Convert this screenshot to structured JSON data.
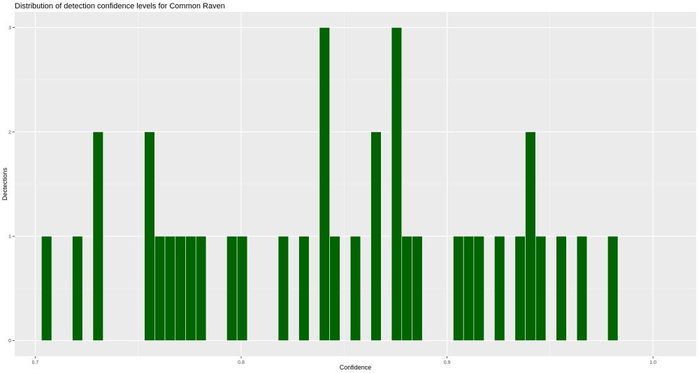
{
  "chart_data": {
    "type": "bar",
    "title": "Distribution of detection confidence levels for Common Raven",
    "xlabel": "Confidence",
    "ylabel": "Dectections",
    "xlim": [
      0.69,
      1.021
    ],
    "ylim": [
      -0.15,
      3.15
    ],
    "x_ticks": [
      {
        "value": 0.7,
        "label": "0.7"
      },
      {
        "value": 0.8,
        "label": "0.8"
      },
      {
        "value": 0.9,
        "label": "0.9"
      },
      {
        "value": 1.0,
        "label": "1.0"
      }
    ],
    "y_ticks": [
      {
        "value": 0,
        "label": "0"
      },
      {
        "value": 1,
        "label": "1"
      },
      {
        "value": 2,
        "label": "2"
      },
      {
        "value": 3,
        "label": "3"
      }
    ],
    "bin_width": 0.005,
    "bar_color": "#006400",
    "bar_edge_color": "#ffffff",
    "panel_background": "#ebebeb",
    "grid": true,
    "bins": [
      {
        "x": 0.7055,
        "count": 1
      },
      {
        "x": 0.7205,
        "count": 1
      },
      {
        "x": 0.7305,
        "count": 2
      },
      {
        "x": 0.7555,
        "count": 2
      },
      {
        "x": 0.7605,
        "count": 1
      },
      {
        "x": 0.7655,
        "count": 1
      },
      {
        "x": 0.7705,
        "count": 1
      },
      {
        "x": 0.7755,
        "count": 1
      },
      {
        "x": 0.7805,
        "count": 1
      },
      {
        "x": 0.7955,
        "count": 1
      },
      {
        "x": 0.8005,
        "count": 1
      },
      {
        "x": 0.8205,
        "count": 1
      },
      {
        "x": 0.8305,
        "count": 1
      },
      {
        "x": 0.8405,
        "count": 3
      },
      {
        "x": 0.8455,
        "count": 1
      },
      {
        "x": 0.8555,
        "count": 1
      },
      {
        "x": 0.8655,
        "count": 2
      },
      {
        "x": 0.8755,
        "count": 3
      },
      {
        "x": 0.8805,
        "count": 1
      },
      {
        "x": 0.8855,
        "count": 1
      },
      {
        "x": 0.9055,
        "count": 1
      },
      {
        "x": 0.9105,
        "count": 1
      },
      {
        "x": 0.9155,
        "count": 1
      },
      {
        "x": 0.9255,
        "count": 1
      },
      {
        "x": 0.9355,
        "count": 1
      },
      {
        "x": 0.9405,
        "count": 2
      },
      {
        "x": 0.9455,
        "count": 1
      },
      {
        "x": 0.9555,
        "count": 1
      },
      {
        "x": 0.9655,
        "count": 1
      },
      {
        "x": 0.9805,
        "count": 1
      }
    ]
  }
}
